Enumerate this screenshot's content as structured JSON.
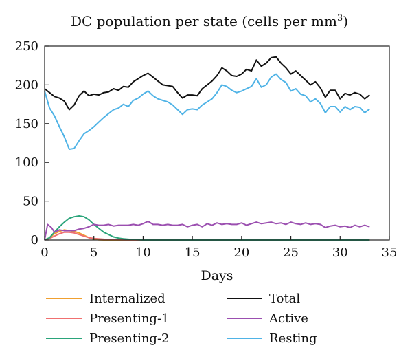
{
  "chart_data": {
    "type": "line",
    "title": "DC population per state (cells per mm",
    "title_sup": "3",
    "title_close": ")",
    "xlabel": "Days",
    "ylabel": "",
    "xlim": [
      0,
      35
    ],
    "ylim": [
      0,
      250
    ],
    "xticks": [
      0,
      5,
      10,
      15,
      20,
      25,
      30,
      35
    ],
    "yticks": [
      0,
      50,
      100,
      150,
      200,
      250
    ],
    "grid": false,
    "legend_position": "bottom",
    "series": [
      {
        "name": "Internalized",
        "color": "#f0a030",
        "x": [
          0,
          0.5,
          1,
          1.5,
          2,
          2.5,
          3,
          3.5,
          4,
          4.5,
          5,
          5.5,
          6,
          7,
          8,
          10,
          15,
          20,
          25,
          30,
          33
        ],
        "y": [
          0,
          3,
          8,
          11,
          13,
          12,
          11,
          9,
          6,
          3,
          1,
          0.3,
          0,
          0,
          0,
          0,
          0,
          0,
          0,
          0,
          0
        ]
      },
      {
        "name": "Presenting-1",
        "color": "#f07070",
        "x": [
          0,
          0.5,
          1,
          1.5,
          2,
          2.5,
          3,
          3.5,
          4,
          4.5,
          5,
          6,
          7,
          8,
          10,
          15,
          20,
          25,
          30,
          33
        ],
        "y": [
          0,
          2,
          5,
          8,
          10,
          10,
          9,
          7,
          5,
          3,
          2,
          1,
          0.5,
          0.2,
          0,
          0,
          0,
          0,
          0,
          0
        ]
      },
      {
        "name": "Presenting-2",
        "color": "#2aa47a",
        "x": [
          0,
          0.5,
          1,
          1.5,
          2,
          2.5,
          3,
          3.5,
          4,
          4.5,
          5,
          5.5,
          6,
          6.5,
          7,
          7.5,
          8,
          8.5,
          9,
          10,
          15,
          20,
          25,
          30,
          33
        ],
        "y": [
          0,
          3,
          10,
          17,
          23,
          28,
          30,
          31,
          30,
          26,
          20,
          15,
          10,
          7,
          4,
          2.5,
          1.5,
          1,
          0.5,
          0,
          0,
          0,
          0,
          0,
          0
        ]
      },
      {
        "name": "Total",
        "color": "#111111",
        "x": [
          0,
          0.5,
          1,
          1.5,
          2,
          2.5,
          3,
          3.5,
          4,
          4.5,
          5,
          5.5,
          6,
          6.5,
          7,
          7.5,
          8,
          8.5,
          9,
          9.5,
          10,
          10.5,
          11,
          11.5,
          12,
          12.5,
          13,
          13.5,
          14,
          14.5,
          15,
          15.5,
          16,
          16.5,
          17,
          17.5,
          18,
          18.5,
          19,
          19.5,
          20,
          20.5,
          21,
          21.5,
          22,
          22.5,
          23,
          23.5,
          24,
          24.5,
          25,
          25.5,
          26,
          26.5,
          27,
          27.5,
          28,
          28.5,
          29,
          29.5,
          30,
          30.5,
          31,
          31.5,
          32,
          32.5,
          33
        ],
        "y": [
          195,
          190,
          185,
          183,
          179,
          168,
          174,
          186,
          192,
          186,
          188,
          187,
          190,
          191,
          195,
          193,
          198,
          197,
          204,
          208,
          212,
          215,
          210,
          205,
          200,
          199,
          198,
          190,
          183,
          187,
          187,
          186,
          195,
          200,
          205,
          212,
          222,
          218,
          212,
          211,
          214,
          220,
          218,
          232,
          224,
          228,
          235,
          236,
          228,
          222,
          214,
          218,
          212,
          206,
          200,
          204,
          196,
          184,
          193,
          193,
          182,
          189,
          187,
          190,
          188,
          182,
          187
        ]
      },
      {
        "name": "Active",
        "color": "#9b4fb0",
        "x": [
          0,
          0.3,
          0.7,
          1,
          1.5,
          2,
          2.5,
          3,
          3.5,
          4,
          4.5,
          5,
          5.5,
          6,
          6.5,
          7,
          7.5,
          8,
          8.5,
          9,
          9.5,
          10,
          10.5,
          11,
          11.5,
          12,
          12.5,
          13,
          13.5,
          14,
          14.5,
          15,
          15.5,
          16,
          16.5,
          17,
          17.5,
          18,
          18.5,
          19,
          19.5,
          20,
          20.5,
          21,
          21.5,
          22,
          22.5,
          23,
          23.5,
          24,
          24.5,
          25,
          25.5,
          26,
          26.5,
          27,
          27.5,
          28,
          28.5,
          29,
          29.5,
          30,
          30.5,
          31,
          31.5,
          32,
          32.5,
          33
        ],
        "y": [
          0,
          20,
          16,
          10,
          13,
          12,
          12,
          12,
          14,
          15,
          17,
          20,
          19,
          19,
          20,
          18,
          19,
          19,
          19,
          20,
          19,
          21,
          24,
          20,
          20,
          19,
          20,
          19,
          19,
          20,
          17,
          19,
          20,
          17,
          21,
          19,
          22,
          20,
          21,
          20,
          20,
          22,
          19,
          21,
          23,
          21,
          22,
          23,
          21,
          22,
          20,
          23,
          21,
          20,
          22,
          20,
          21,
          20,
          16,
          18,
          19,
          17,
          18,
          16,
          19,
          17,
          19,
          17
        ]
      },
      {
        "name": "Resting",
        "color": "#4fb3e6",
        "x": [
          0,
          0.5,
          1,
          1.5,
          2,
          2.5,
          3,
          3.5,
          4,
          4.5,
          5,
          5.5,
          6,
          6.5,
          7,
          7.5,
          8,
          8.5,
          9,
          9.5,
          10,
          10.5,
          11,
          11.5,
          12,
          12.5,
          13,
          13.5,
          14,
          14.5,
          15,
          15.5,
          16,
          16.5,
          17,
          17.5,
          18,
          18.5,
          19,
          19.5,
          20,
          20.5,
          21,
          21.5,
          22,
          22.5,
          23,
          23.5,
          24,
          24.5,
          25,
          25.5,
          26,
          26.5,
          27,
          27.5,
          28,
          28.5,
          29,
          29.5,
          30,
          30.5,
          31,
          31.5,
          32,
          32.5,
          33
        ],
        "y": [
          192,
          170,
          160,
          146,
          133,
          117,
          118,
          128,
          137,
          141,
          146,
          152,
          158,
          163,
          168,
          170,
          175,
          172,
          180,
          183,
          188,
          192,
          186,
          182,
          180,
          178,
          174,
          168,
          162,
          168,
          169,
          168,
          174,
          178,
          182,
          190,
          200,
          198,
          193,
          190,
          192,
          195,
          198,
          208,
          197,
          200,
          210,
          214,
          207,
          203,
          192,
          195,
          188,
          186,
          178,
          182,
          176,
          164,
          172,
          172,
          165,
          172,
          168,
          172,
          171,
          164,
          169
        ]
      }
    ]
  }
}
